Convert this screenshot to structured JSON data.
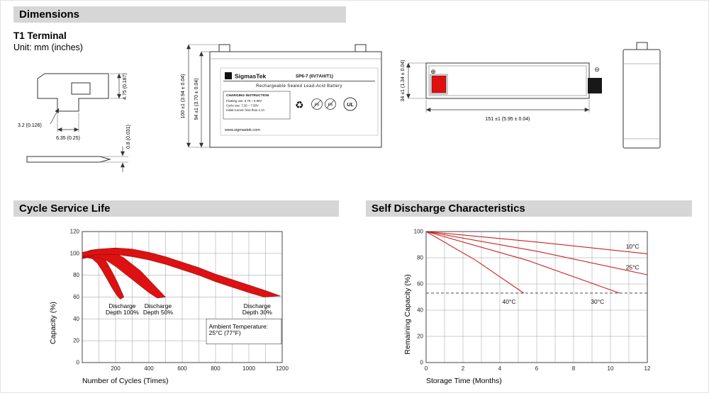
{
  "colors": {
    "header_bg": "#d6d6d6",
    "band_red": "#dd1111",
    "line_red": "#cc2222",
    "terminal_red": "#e01010"
  },
  "icons": {
    "recycle": "♻",
    "plus_terminal": "⊕",
    "minus_terminal": "⊖"
  },
  "header": {
    "title": "Dimensions"
  },
  "dimensions_section": {
    "terminal_label": "T1 Terminal",
    "unit_label": "Unit: mm (inches)",
    "terminal_detail": {
      "dim_height": "4.75 (0.187)",
      "dim_thickness": "3.2 (0.126)",
      "dim_width": "6.35 (0.25)",
      "dim_blade_thickness": "0.8 (0.031)"
    },
    "front_view": {
      "logo_letter": "S",
      "brand": "SigmasTek",
      "model": "SP6-7 (6V7AH/T1)",
      "product": "Rechargeable Sealed Lead-Acid Battery",
      "charging_title": "CHARGING INSTRUCTION",
      "charging_lines": [
        "Floating use: 6.75 ~ 6.90V",
        "Cycle use: 7.20 ~ 7.50V",
        "Initial current: less than 2.1A"
      ],
      "pb_label": "Pb",
      "ul_label": "UL",
      "website": "www.sigmastek.com",
      "dim_outer_height": "100 ±1 (3.94 ± 0.04)",
      "dim_inner_height": "94 ±1 (3.70 ± 0.04)"
    },
    "top_view": {
      "dim_depth": "34 ±1 (1.34 ± 0.04)",
      "dim_length": "151 ±1 (5.95 ± 0.04)"
    }
  },
  "chart_data": [
    {
      "type": "area",
      "title": "Cycle Service Life",
      "xlabel": "Number of Cycles (Times)",
      "ylabel": "Capacity (%)",
      "xlim": [
        0,
        1200
      ],
      "ylim": [
        0,
        120
      ],
      "xticks": [
        200,
        400,
        600,
        800,
        1000,
        1200
      ],
      "yticks": [
        0,
        20,
        40,
        60,
        80,
        100,
        120
      ],
      "x_minor_step": 100,
      "grid": true,
      "legend_position": "none",
      "bands": [
        {
          "name": "Discharge Depth 100%",
          "upper": [
            [
              0,
              99
            ],
            [
              30,
              102
            ],
            [
              60,
              103
            ],
            [
              90,
              102
            ],
            [
              120,
              98
            ],
            [
              150,
              91
            ],
            [
              180,
              83
            ],
            [
              210,
              74
            ],
            [
              230,
              67
            ],
            [
              250,
              60
            ]
          ],
          "lower": [
            [
              0,
              95
            ],
            [
              30,
              96
            ],
            [
              60,
              95
            ],
            [
              90,
              91
            ],
            [
              120,
              84
            ],
            [
              150,
              76
            ],
            [
              180,
              68
            ],
            [
              210,
              61
            ],
            [
              228,
              58
            ]
          ]
        },
        {
          "name": "Discharge Depth 50%",
          "upper": [
            [
              0,
              100
            ],
            [
              50,
              103
            ],
            [
              100,
              104
            ],
            [
              150,
              103
            ],
            [
              200,
              100
            ],
            [
              250,
              96
            ],
            [
              300,
              90
            ],
            [
              350,
              84
            ],
            [
              400,
              76
            ],
            [
              450,
              68
            ],
            [
              500,
              60
            ]
          ],
          "lower": [
            [
              0,
              96
            ],
            [
              50,
              97
            ],
            [
              100,
              96
            ],
            [
              150,
              93
            ],
            [
              200,
              88
            ],
            [
              250,
              82
            ],
            [
              300,
              76
            ],
            [
              350,
              70
            ],
            [
              400,
              64
            ],
            [
              450,
              59
            ]
          ]
        },
        {
          "name": "Discharge Depth 30%",
          "upper": [
            [
              0,
              101
            ],
            [
              100,
              104
            ],
            [
              200,
              105
            ],
            [
              300,
              104
            ],
            [
              400,
              101
            ],
            [
              500,
              97
            ],
            [
              600,
              92
            ],
            [
              700,
              87
            ],
            [
              800,
              81
            ],
            [
              900,
              76
            ],
            [
              1000,
              71
            ],
            [
              1100,
              66
            ],
            [
              1190,
              61
            ]
          ],
          "lower": [
            [
              0,
              97
            ],
            [
              100,
              99
            ],
            [
              200,
              99
            ],
            [
              300,
              97
            ],
            [
              400,
              94
            ],
            [
              500,
              90
            ],
            [
              600,
              85
            ],
            [
              700,
              80
            ],
            [
              800,
              74
            ],
            [
              900,
              69
            ],
            [
              1000,
              64
            ],
            [
              1090,
              60
            ]
          ]
        }
      ],
      "annotations": [
        {
          "text": "Discharge\nDepth 100%",
          "x": 240,
          "y": 50
        },
        {
          "text": "Discharge\nDepth 50%",
          "x": 455,
          "y": 50
        },
        {
          "text": "Discharge\nDepth 30%",
          "x": 1050,
          "y": 50
        },
        {
          "text": "Ambient Temperature:\n25°C (77°F)",
          "x": 760,
          "y": 31,
          "align": "left",
          "box": {
            "x1": 745,
            "y1": 17,
            "x2": 1195,
            "y2": 40
          }
        }
      ]
    },
    {
      "type": "line",
      "title": "Self Discharge Characteristics",
      "xlabel": "Storage Time (Months)",
      "ylabel": "Remaining Capacity (%)",
      "xlim": [
        0,
        12
      ],
      "ylim": [
        0,
        100
      ],
      "xticks": [
        0,
        2,
        4,
        6,
        8,
        10,
        12
      ],
      "yticks": [
        0,
        20,
        40,
        60,
        80,
        100
      ],
      "x_minor_step": 1,
      "grid": true,
      "dashed_line_y": 53,
      "series": [
        {
          "name": "10°C",
          "points": [
            [
              0,
              100
            ],
            [
              6,
              92
            ],
            [
              12,
              83
            ]
          ],
          "label_pos": [
            11.2,
            87
          ]
        },
        {
          "name": "25°C",
          "points": [
            [
              0,
              100
            ],
            [
              6,
              85
            ],
            [
              12,
              67
            ]
          ],
          "label_pos": [
            11.2,
            71
          ]
        },
        {
          "name": "30°C",
          "points": [
            [
              0,
              100
            ],
            [
              5.5,
              78
            ],
            [
              10.5,
              53
            ]
          ],
          "label_pos": [
            9.3,
            45
          ]
        },
        {
          "name": "40°C",
          "points": [
            [
              0,
              100
            ],
            [
              2.7,
              78
            ],
            [
              5.3,
              53
            ]
          ],
          "label_pos": [
            4.5,
            45
          ]
        }
      ]
    }
  ]
}
